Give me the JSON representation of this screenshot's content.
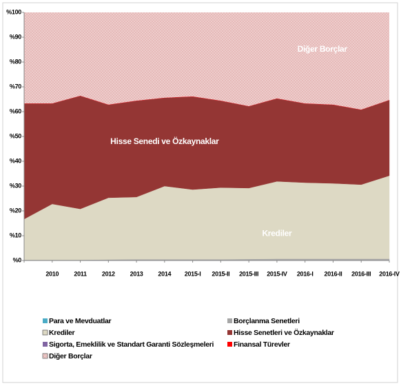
{
  "chart_data": {
    "type": "area",
    "stacked": true,
    "categories": [
      null,
      "2010",
      "2011",
      "2012",
      "2013",
      "2014",
      "2015-I",
      "2015-II",
      "2015-III",
      "2015-IV",
      "2016-I",
      "2016-II",
      "2016-III",
      "2016-IV"
    ],
    "series": [
      {
        "name": "Para ve Mevduatlar",
        "color": "#4bacc6",
        "values": [
          0.2,
          0.2,
          0.2,
          0.2,
          0.2,
          0.2,
          0.2,
          0.2,
          0.2,
          0.2,
          0.2,
          0.2,
          0.2,
          0.2
        ]
      },
      {
        "name": "Borçlanma Senetleri",
        "color": "#a6a6a6",
        "values": [
          0.1,
          0.1,
          0.1,
          0.2,
          0.3,
          0.3,
          0.3,
          0.3,
          0.4,
          0.5,
          0.5,
          0.5,
          0.5,
          0.5
        ]
      },
      {
        "name": "Krediler",
        "color": "#ddd9c4",
        "values": [
          16.4,
          22.5,
          20.5,
          24.9,
          25.1,
          29.5,
          28.1,
          28.9,
          28.6,
          31.2,
          30.7,
          30.4,
          29.9,
          33.5
        ]
      },
      {
        "name": "Hisse Senetleri ve Özkaynaklar",
        "color": "#943634",
        "values": [
          46.6,
          40.5,
          45.6,
          37.5,
          38.8,
          35.6,
          37.5,
          35.0,
          33.0,
          33.4,
          31.9,
          31.7,
          30.2,
          30.5
        ]
      },
      {
        "name": "Sigorta, Emeklilik ve Standart Garanti Sözleşmeleri",
        "color": "#8064a2",
        "values": [
          0,
          0,
          0,
          0,
          0,
          0,
          0,
          0,
          0,
          0,
          0,
          0,
          0,
          0
        ]
      },
      {
        "name": "Finansal Türevler",
        "color": "#ff0000",
        "values": [
          0,
          0,
          0,
          0,
          0,
          0,
          0,
          0,
          0,
          0,
          0,
          0,
          0,
          0
        ]
      },
      {
        "name": "Diğer Borçlar",
        "color": "#e6b9b8",
        "pattern": "dotted",
        "values": [
          36.7,
          36.7,
          33.6,
          37.2,
          35.6,
          34.4,
          33.9,
          35.6,
          37.8,
          34.7,
          36.7,
          37.2,
          39.2,
          35.3
        ]
      }
    ],
    "annotations": [
      {
        "text": "Diğer Borçlar",
        "series": 6,
        "index": 10
      },
      {
        "text": "Hisse Senedi ve Özkaynaklar",
        "series": 3,
        "index": 5
      },
      {
        "text": "Krediler",
        "series": 2,
        "index": 9
      }
    ],
    "ylim": [
      0,
      100
    ],
    "yticks": [
      {
        "value": 0,
        "label": "%0"
      },
      {
        "value": 10,
        "label": "%10"
      },
      {
        "value": 20,
        "label": "%20"
      },
      {
        "value": 30,
        "label": "%30"
      },
      {
        "value": 40,
        "label": "%40"
      },
      {
        "value": 50,
        "label": "%50"
      },
      {
        "value": 60,
        "label": "%60"
      },
      {
        "value": 70,
        "label": "%70"
      },
      {
        "value": 80,
        "label": "%80"
      },
      {
        "value": 90,
        "label": "%90"
      },
      {
        "value": 100,
        "label": "%100"
      }
    ],
    "legend": "bottom"
  }
}
